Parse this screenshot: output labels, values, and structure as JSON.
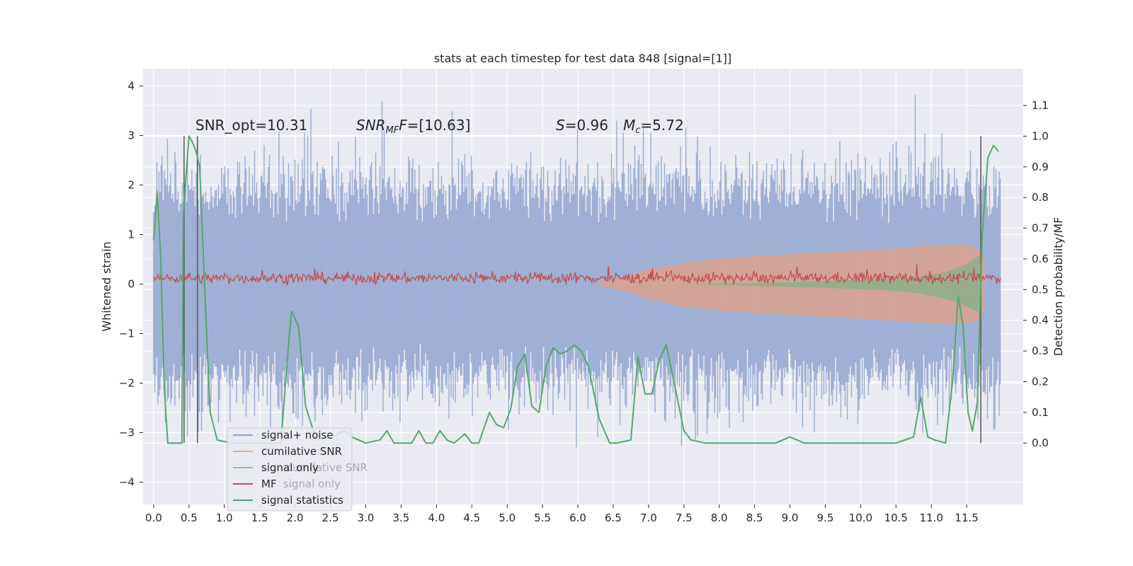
{
  "chart_data": {
    "type": "line",
    "title": "stats at each timestep for test data 848 [signal=[1]]",
    "xlabel": "",
    "ylabel": "Whitened strain",
    "y2label": "Detection probability/MF",
    "xlim": [
      -0.15,
      12.3
    ],
    "ylim": [
      -4.45,
      4.35
    ],
    "y2lim": [
      -0.2,
      1.22
    ],
    "xticks": [
      0.0,
      0.5,
      1.0,
      1.5,
      2.0,
      2.5,
      3.0,
      3.5,
      4.0,
      4.5,
      5.0,
      5.5,
      6.0,
      6.5,
      7.0,
      7.5,
      8.0,
      8.5,
      9.0,
      9.5,
      10.0,
      10.5,
      11.0,
      11.5
    ],
    "xtick_labels": [
      "0.0",
      "0.5",
      "1.0",
      "1.5",
      "2.0",
      "2.5",
      "3.0",
      "3.5",
      "4.0",
      "4.5",
      "5.0",
      "5.5",
      "6.0",
      "6.5",
      "7.0",
      "7.5",
      "8.0",
      "8.5",
      "9.0",
      "9.5",
      "10.0",
      "10.5",
      "11.0",
      "11.5"
    ],
    "yticks": [
      -4,
      -3,
      -2,
      -1,
      0,
      1,
      2,
      3,
      4
    ],
    "ytick_labels": [
      "−4",
      "−3",
      "−2",
      "−1",
      "0",
      "1",
      "2",
      "3",
      "4"
    ],
    "y2ticks": [
      0.0,
      0.1,
      0.2,
      0.3,
      0.4,
      0.5,
      0.6,
      0.7,
      0.8,
      0.9,
      1.0,
      1.1
    ],
    "y2tick_labels": [
      "0.0",
      "0.1",
      "0.2",
      "0.3",
      "0.4",
      "0.5",
      "0.6",
      "0.7",
      "0.8",
      "0.9",
      "1.0",
      "1.1"
    ],
    "grid": true,
    "legend_position": "lower-left",
    "annotations": {
      "snr_opt": "SNR_opt=10.31",
      "snr_mf_main": "SNR",
      "snr_mf_sub": "MF",
      "snr_mf_value": "=[10.63]",
      "s_symbol": "S",
      "s_value": "=0.96",
      "mc_symbol": "M",
      "mc_sub": "c",
      "mc_value": "=5.72"
    },
    "legend": [
      {
        "label": "signal+ noise",
        "color": "#4c72b0"
      },
      {
        "label": "cumilative SNR",
        "color": "#dd8452"
      },
      {
        "label": "signal only",
        "color": "#55a868"
      },
      {
        "label": "MF",
        "color": "#c44e52"
      },
      {
        "label": "signal statistics",
        "color": "#55a868"
      }
    ],
    "legend_ghost": [
      {
        "label": "cumilative SNR"
      },
      {
        "label": "signal only"
      }
    ],
    "series": {
      "noise_envelope": {
        "name": "signal+ noise",
        "color": "#9aacd2",
        "x_range": [
          0.0,
          11.98
        ],
        "typical_amplitude": 2.1,
        "peak_amplitude": 3.9
      },
      "cumulative_snr_band": {
        "name": "cumilative SNR",
        "color": "#d9a18c",
        "x": [
          6.2,
          6.6,
          7.0,
          7.5,
          8.0,
          8.5,
          9.0,
          9.5,
          10.0,
          10.5,
          11.0,
          11.4,
          11.6,
          11.75
        ],
        "upper": [
          0.0,
          0.12,
          0.3,
          0.42,
          0.52,
          0.56,
          0.6,
          0.64,
          0.68,
          0.72,
          0.78,
          0.8,
          0.76,
          0.55
        ],
        "lower": [
          0.0,
          -0.12,
          -0.3,
          -0.46,
          -0.54,
          -0.58,
          -0.62,
          -0.66,
          -0.7,
          -0.74,
          -0.8,
          -0.82,
          -0.78,
          -0.6
        ]
      },
      "signal_only_band": {
        "name": "signal only",
        "color": "#8db08a",
        "x": [
          7.5,
          8.5,
          9.5,
          10.3,
          10.8,
          11.2,
          11.5,
          11.7
        ],
        "upper": [
          0.0,
          0.02,
          0.06,
          0.1,
          0.14,
          0.24,
          0.4,
          0.6
        ],
        "lower": [
          0.0,
          -0.04,
          -0.08,
          -0.12,
          -0.18,
          -0.3,
          -0.45,
          -0.6
        ]
      },
      "mf": {
        "name": "MF",
        "color": "#c44e52",
        "x_range": [
          0.0,
          11.98
        ],
        "baseline": 0.12,
        "amplitude": 0.16
      },
      "signal_statistics": {
        "name": "signal statistics",
        "color": "#55a868",
        "x": [
          0.0,
          0.05,
          0.1,
          0.15,
          0.2,
          0.3,
          0.4,
          0.42,
          0.5,
          0.55,
          0.6,
          0.65,
          0.75,
          0.8,
          0.9,
          1.1,
          1.3,
          1.6,
          1.8,
          1.9,
          1.95,
          2.05,
          2.15,
          2.3,
          2.5,
          2.7,
          2.8,
          3.0,
          3.2,
          3.3,
          3.4,
          3.5,
          3.65,
          3.75,
          3.85,
          3.95,
          4.05,
          4.15,
          4.25,
          4.4,
          4.5,
          4.6,
          4.75,
          4.85,
          4.95,
          5.05,
          5.15,
          5.25,
          5.35,
          5.45,
          5.55,
          5.65,
          5.75,
          5.85,
          5.95,
          6.05,
          6.15,
          6.3,
          6.45,
          6.55,
          6.75,
          6.85,
          6.95,
          7.05,
          7.15,
          7.25,
          7.35,
          7.5,
          7.6,
          7.8,
          8.2,
          8.5,
          8.7,
          8.8,
          9.0,
          9.2,
          10.0,
          10.5,
          10.75,
          10.85,
          10.95,
          11.05,
          11.2,
          11.3,
          11.38,
          11.45,
          11.52,
          11.58,
          11.65,
          11.72,
          11.8,
          11.88,
          11.95
        ],
        "y": [
          0.66,
          0.82,
          0.6,
          0.18,
          0.0,
          0.0,
          0.0,
          0.75,
          1.0,
          0.98,
          0.95,
          0.9,
          0.35,
          0.1,
          0.01,
          0.0,
          0.0,
          0.0,
          0.0,
          0.3,
          0.43,
          0.38,
          0.12,
          0.01,
          0.02,
          0.04,
          0.02,
          0.0,
          0.01,
          0.04,
          0.0,
          0.0,
          0.0,
          0.04,
          0.0,
          0.0,
          0.04,
          0.01,
          0.0,
          0.03,
          0.0,
          0.0,
          0.1,
          0.06,
          0.05,
          0.11,
          0.25,
          0.29,
          0.12,
          0.1,
          0.25,
          0.31,
          0.29,
          0.3,
          0.32,
          0.3,
          0.25,
          0.08,
          0.0,
          0.0,
          0.01,
          0.28,
          0.16,
          0.16,
          0.27,
          0.32,
          0.21,
          0.04,
          0.01,
          0.0,
          0.0,
          0.0,
          0.0,
          0.0,
          0.02,
          0.0,
          0.0,
          0.0,
          0.02,
          0.15,
          0.02,
          0.01,
          0.0,
          0.2,
          0.48,
          0.38,
          0.1,
          0.04,
          0.13,
          0.68,
          0.93,
          0.97,
          0.95
        ]
      }
    },
    "vlines": [
      0.43,
      0.62,
      11.7
    ]
  }
}
